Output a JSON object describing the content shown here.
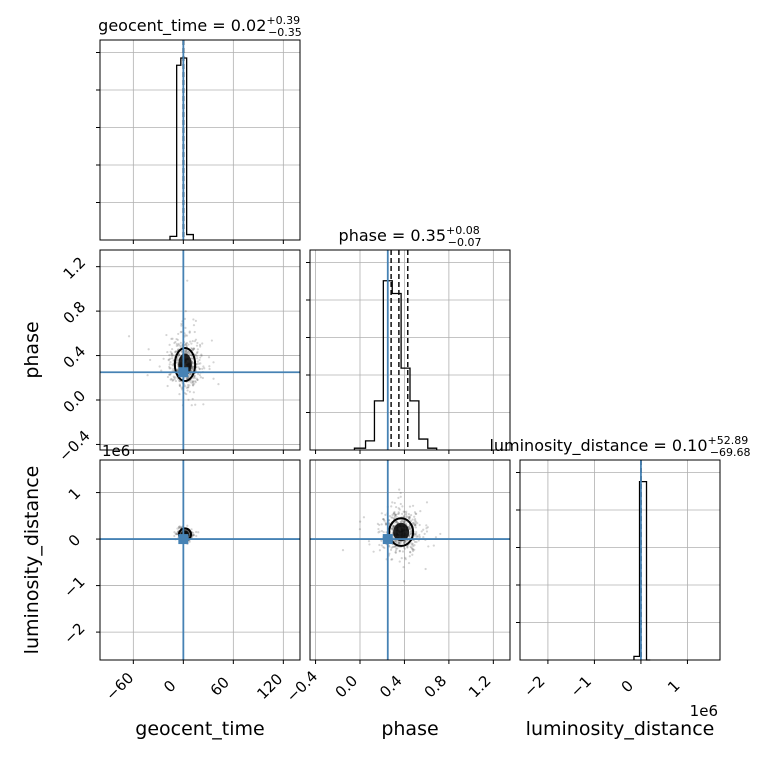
{
  "chart_data": {
    "type": "corner",
    "truth_color": "#4682b4",
    "grid": true,
    "parameters": [
      {
        "name": "geocent_time",
        "axis_label": "geocent_time",
        "lim": [
          -100,
          140
        ],
        "ticks": [
          -60,
          0,
          60,
          120
        ],
        "tick_labels": [
          "−60",
          "0",
          "60",
          "120"
        ],
        "offset_text": "",
        "truth": 0.02,
        "title": {
          "prefix": "geocent_time = 0.02",
          "upper": "+0.39",
          "lower": "−0.35"
        },
        "quantiles": [
          -0.33,
          0.02,
          0.41
        ]
      },
      {
        "name": "phase",
        "axis_label": "phase",
        "lim": [
          -0.45,
          1.35
        ],
        "ticks": [
          -0.4,
          0.0,
          0.4,
          0.8,
          1.2
        ],
        "tick_labels": [
          "−0.4",
          "0.0",
          "0.4",
          "0.8",
          "1.2"
        ],
        "offset_text": "",
        "truth": 0.25,
        "title": {
          "prefix": "phase = 0.35",
          "upper": "+0.08",
          "lower": "−0.07"
        },
        "quantiles": [
          0.28,
          0.35,
          0.43
        ]
      },
      {
        "name": "luminosity_distance",
        "axis_label": "luminosity_distance",
        "lim": [
          -2.6,
          1.7
        ],
        "ticks": [
          -2,
          -1,
          0,
          1
        ],
        "tick_labels": [
          "−2",
          "−1",
          "0",
          "1"
        ],
        "offset_text": "1e6",
        "truth": 0.0,
        "title": {
          "prefix": "luminosity_distance = 0.10",
          "upper": "+52.89",
          "lower": "−69.68"
        },
        "quantiles": [
          -6.96e-05,
          1e-07,
          5.29e-05
        ]
      }
    ],
    "histograms": [
      {
        "param": "geocent_time",
        "bins": [
          [
            -16,
            -8,
            0.02
          ],
          [
            -8,
            -3,
            0.96
          ],
          [
            -3,
            4,
            1.0
          ],
          [
            4,
            12,
            0.03
          ]
        ]
      },
      {
        "param": "phase",
        "bins": [
          [
            -0.05,
            0.05,
            0.01
          ],
          [
            0.05,
            0.13,
            0.05
          ],
          [
            0.13,
            0.21,
            0.27
          ],
          [
            0.21,
            0.29,
            0.93
          ],
          [
            0.29,
            0.37,
            0.86
          ],
          [
            0.37,
            0.45,
            0.45
          ],
          [
            0.45,
            0.53,
            0.27
          ],
          [
            0.53,
            0.61,
            0.06
          ],
          [
            0.61,
            0.69,
            0.01
          ]
        ]
      },
      {
        "param": "luminosity_distance",
        "bins": [
          [
            -0.15,
            -0.03,
            0.02
          ],
          [
            -0.03,
            0.12,
            0.98
          ],
          [
            0.12,
            0.2,
            0.0
          ]
        ]
      }
    ],
    "scatter_2d": [
      {
        "x": "geocent_time",
        "y": "phase",
        "center": [
          2,
          0.32
        ],
        "spread": [
          9,
          0.11
        ]
      },
      {
        "x": "geocent_time",
        "y": "luminosity_distance",
        "center": [
          2,
          0.1
        ],
        "spread": [
          3,
          0.05
        ]
      },
      {
        "x": "phase",
        "y": "luminosity_distance",
        "center": [
          0.37,
          0.15
        ],
        "spread": [
          0.08,
          0.22
        ]
      }
    ]
  }
}
